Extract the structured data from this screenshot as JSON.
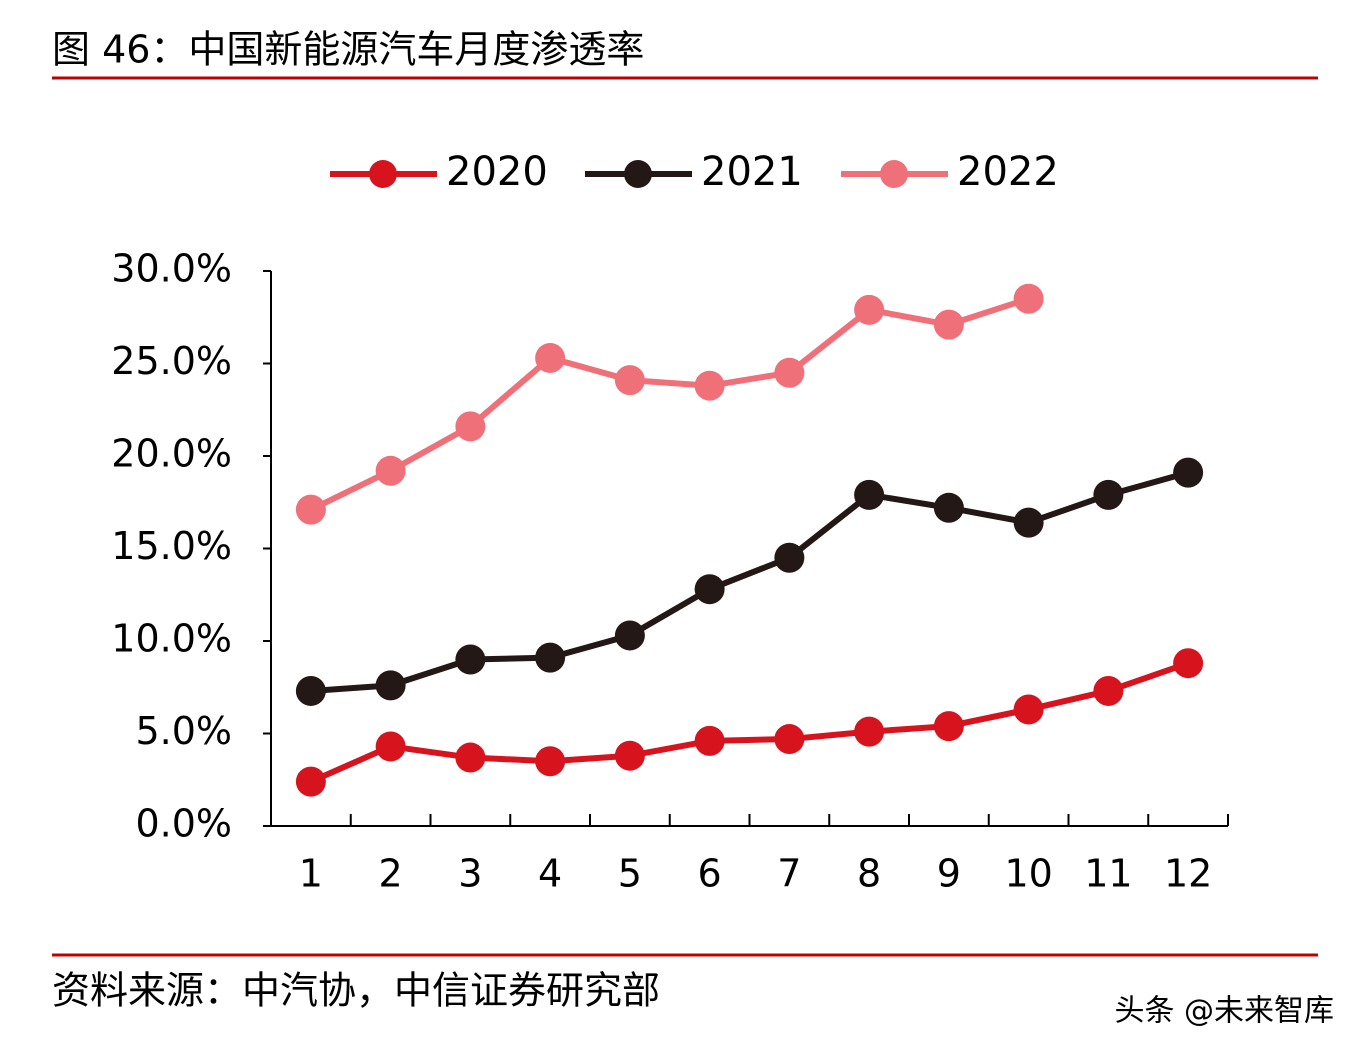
{
  "chart_data": {
    "type": "line",
    "title": "图 46：中国新能源汽车月度渗透率",
    "source": "资料来源：中汽协，中信证券研究部",
    "watermark": "头条 @未来智库",
    "categories": [
      "1",
      "2",
      "3",
      "4",
      "5",
      "6",
      "7",
      "8",
      "9",
      "10",
      "11",
      "12"
    ],
    "series": [
      {
        "name": "2020",
        "color": "#d7141e",
        "values": [
          2.4,
          4.3,
          3.7,
          3.5,
          3.8,
          4.6,
          4.7,
          5.1,
          5.4,
          6.3,
          7.3,
          8.8
        ]
      },
      {
        "name": "2021",
        "color": "#231815",
        "values": [
          7.3,
          7.6,
          9.0,
          9.1,
          10.3,
          12.8,
          14.5,
          17.9,
          17.2,
          16.4,
          17.9,
          19.1
        ]
      },
      {
        "name": "2022",
        "color": "#f0707a",
        "values": [
          17.1,
          19.2,
          21.6,
          25.3,
          24.1,
          23.8,
          24.5,
          27.9,
          27.1,
          28.5,
          null,
          null
        ]
      }
    ],
    "ylim": [
      0,
      30
    ],
    "yticks": [
      {
        "value": 0,
        "label": "0.0%"
      },
      {
        "value": 5,
        "label": "5.0%"
      },
      {
        "value": 10,
        "label": "10.0%"
      },
      {
        "value": 15,
        "label": "15.0%"
      },
      {
        "value": 20,
        "label": "20.0%"
      },
      {
        "value": 25,
        "label": "25.0%"
      },
      {
        "value": 30,
        "label": "30.0%"
      }
    ],
    "grid": false,
    "legend": "top"
  }
}
